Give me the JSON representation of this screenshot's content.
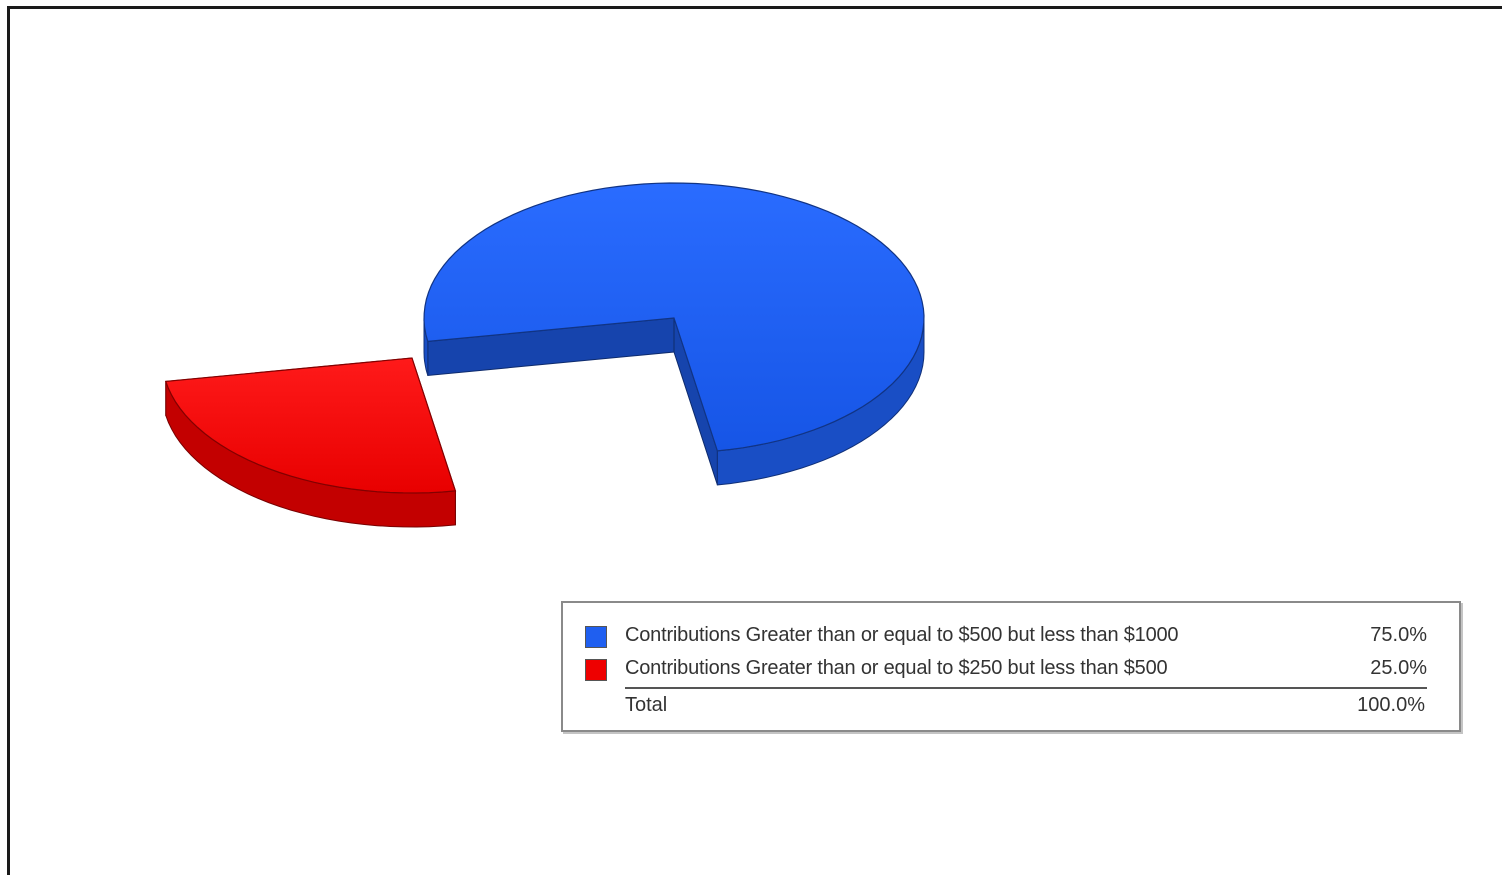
{
  "chart_data": {
    "type": "pie",
    "title": "",
    "style": "3d-exploded",
    "series": [
      {
        "name": "Contributions Greater than or equal to $500 but less than $1000",
        "value": 75.0,
        "color": "#1f5ff0",
        "display": "75.0%"
      },
      {
        "name": "Contributions Greater than or equal to $250 but less than $500",
        "value": 25.0,
        "color": "#ee0000",
        "display": "25.0%"
      }
    ],
    "total_label": "Total",
    "total_display": "100.0%",
    "legend_placement": "bottom-right"
  }
}
